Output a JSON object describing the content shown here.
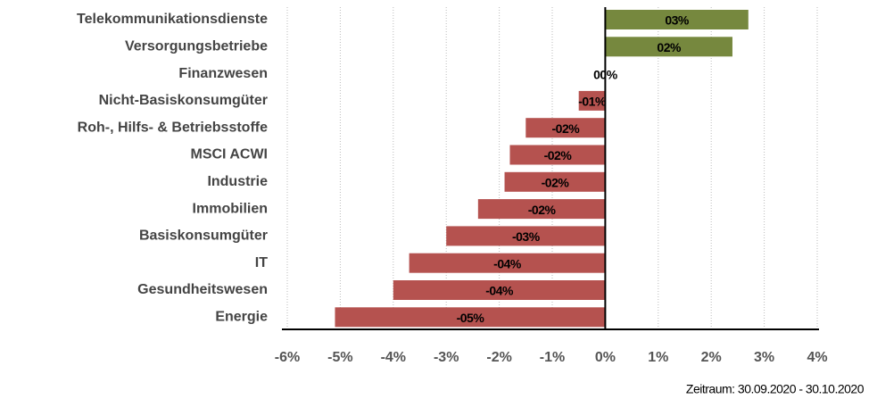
{
  "chart_data": {
    "type": "hbar",
    "categories": [
      "Telekommunikationsdienste",
      "Versorgungsbetriebe",
      "Finanzwesen",
      "Nicht-Basiskonsumgüter",
      "Roh-, Hilfs- & Betriebsstoffe",
      "MSCI ACWI",
      "Industrie",
      "Immobilien",
      "Basiskonsumgüter",
      "IT",
      "Gesundheitswesen",
      "Energie"
    ],
    "values": [
      2.7,
      2.4,
      0.0,
      -0.5,
      -1.5,
      -1.8,
      -1.9,
      -2.4,
      -3.0,
      -3.7,
      -4.0,
      -5.1
    ],
    "value_labels": [
      "03%",
      "02%",
      "00%",
      "-01%",
      "-02%",
      "-02%",
      "-02%",
      "-02%",
      "-03%",
      "-04%",
      "-04%",
      "-05%"
    ],
    "colors": {
      "positive": "#76883e",
      "negative": "#b5524f"
    },
    "xlim": [
      -6,
      4
    ],
    "xticks": [
      {
        "value": -6,
        "label": "-6%"
      },
      {
        "value": -5,
        "label": "-5%"
      },
      {
        "value": -4,
        "label": "-4%"
      },
      {
        "value": -3,
        "label": "-3%"
      },
      {
        "value": -2,
        "label": "-2%"
      },
      {
        "value": -1,
        "label": "-1%"
      },
      {
        "value": 0,
        "label": "0%"
      },
      {
        "value": 1,
        "label": "1%"
      },
      {
        "value": 2,
        "label": "2%"
      },
      {
        "value": 3,
        "label": "3%"
      },
      {
        "value": 4,
        "label": "4%"
      }
    ],
    "grid": true,
    "note": "Zeitraum: 30.09.2020 - 30.10.2020"
  }
}
